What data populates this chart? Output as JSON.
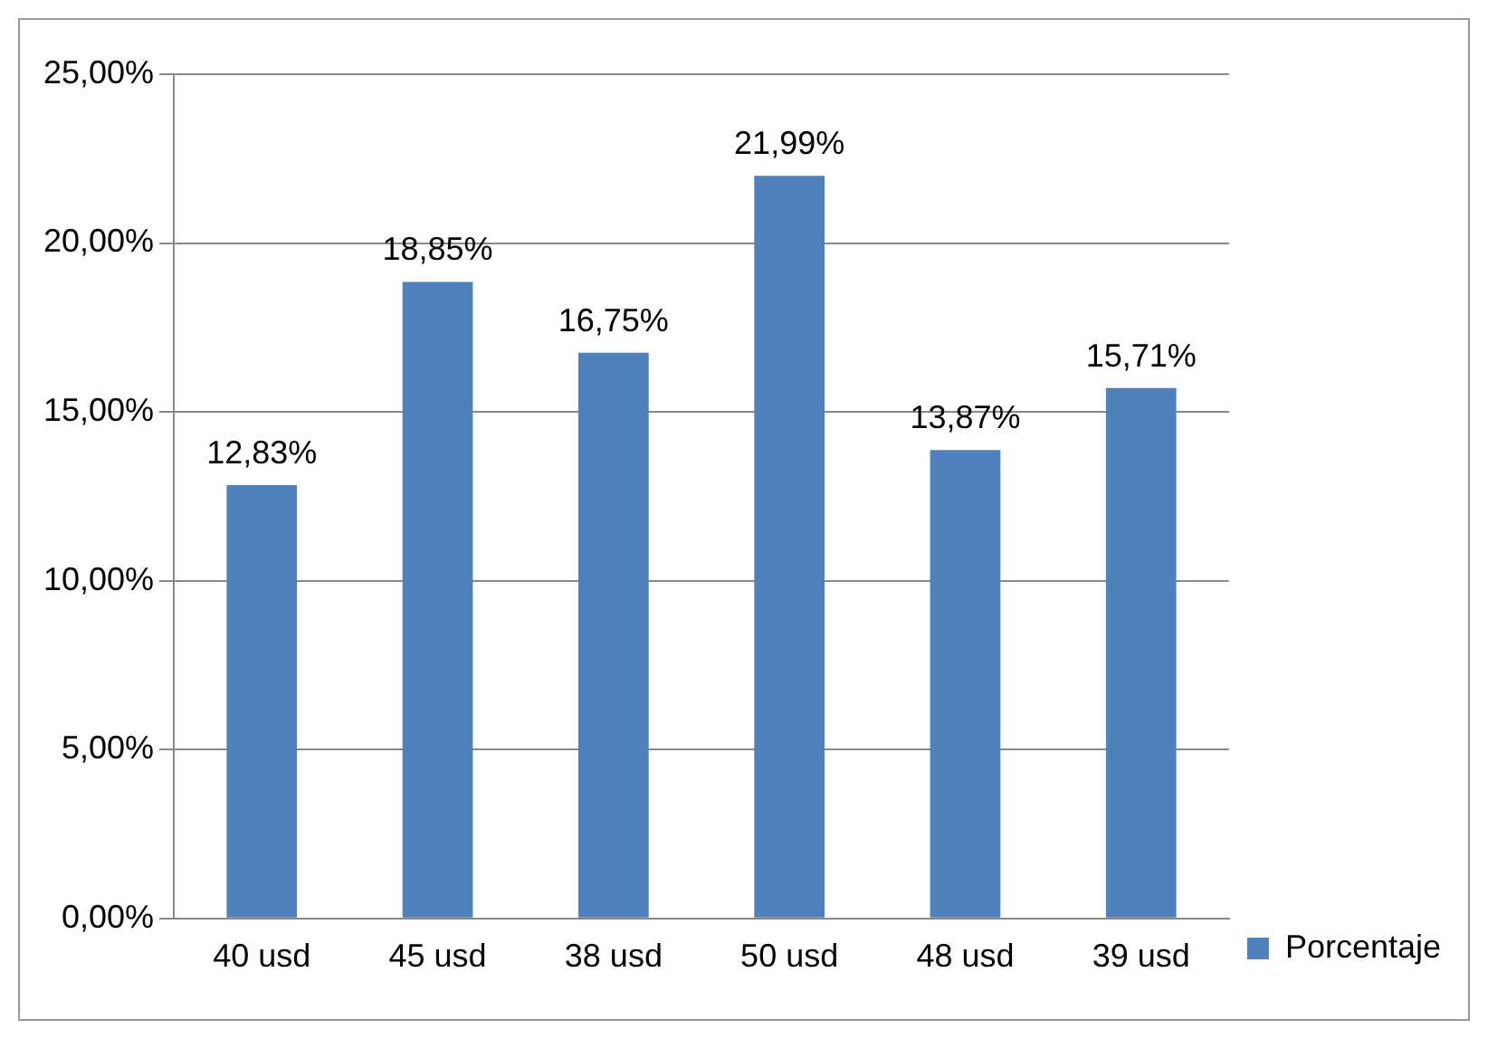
{
  "chart_data": {
    "type": "bar",
    "categories": [
      "40 usd",
      "45 usd",
      "38 usd",
      "50 usd",
      "48 usd",
      "39 usd"
    ],
    "series": [
      {
        "name": "Porcentaje",
        "color": "#4f81bd",
        "values": [
          12.83,
          18.85,
          16.75,
          21.99,
          13.87,
          15.71
        ],
        "value_labels": [
          "12,83%",
          "18,85%",
          "16,75%",
          "21,99%",
          "13,87%",
          "15,71%"
        ]
      }
    ],
    "ylim": [
      0,
      25
    ],
    "yticks": [
      {
        "value": 0,
        "label": "0,00%"
      },
      {
        "value": 5,
        "label": "5,00%"
      },
      {
        "value": 10,
        "label": "10,00%"
      },
      {
        "value": 15,
        "label": "15,00%"
      },
      {
        "value": 20,
        "label": "20,00%"
      },
      {
        "value": 25,
        "label": "25,00%"
      }
    ],
    "grid": "y",
    "legend": "bottom right"
  }
}
